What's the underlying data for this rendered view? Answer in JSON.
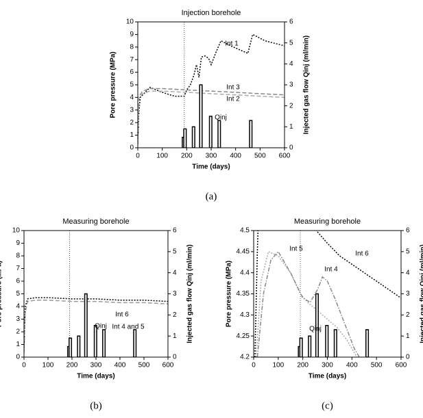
{
  "chart_data": [
    {
      "type": "line",
      "title": "Injection borehole",
      "caption": "(a)",
      "x_label": "Time   (days)",
      "y_label": "Pore pressure   (MPa)",
      "y2_label": "Injected gas flow Qinj (ml/min)",
      "xlim": [
        0,
        600
      ],
      "xticks": [
        0,
        100,
        200,
        300,
        400,
        500,
        600
      ],
      "ylim": [
        0,
        10
      ],
      "yticks": [
        0,
        1,
        2,
        3,
        4,
        5,
        6,
        7,
        8,
        9,
        10
      ],
      "y2lim": [
        0,
        6
      ],
      "y2ticks": [
        0,
        1,
        2,
        3,
        4,
        5,
        6
      ],
      "vline": 190,
      "series": [
        {
          "name": "Int 1",
          "color": "#000000",
          "dash": "dotted",
          "x": [
            0,
            5,
            10,
            30,
            50,
            100,
            150,
            190,
            200,
            215,
            230,
            240,
            250,
            260,
            275,
            290,
            300,
            320,
            340,
            380,
            450,
            470,
            520,
            600
          ],
          "values": [
            0.5,
            3.0,
            4.0,
            4.4,
            4.8,
            4.4,
            4.1,
            4.1,
            4.6,
            5.0,
            5.8,
            6.6,
            5.6,
            7.2,
            7.3,
            7.1,
            6.6,
            7.6,
            8.5,
            8.1,
            7.5,
            9.0,
            8.5,
            8.1
          ]
        },
        {
          "name": "Int 3",
          "color": "#888888",
          "dash": "dashed",
          "x": [
            0,
            5,
            20,
            50,
            100,
            200,
            300,
            400,
            500,
            600
          ],
          "values": [
            0.3,
            4.1,
            4.5,
            4.7,
            4.7,
            4.6,
            4.5,
            4.4,
            4.3,
            4.2
          ]
        },
        {
          "name": "Int 2",
          "color": "#aaaaaa",
          "dash": "dashed",
          "x": [
            0,
            5,
            20,
            50,
            100,
            200,
            300,
            400,
            500,
            600
          ],
          "values": [
            0.3,
            4.0,
            4.3,
            4.5,
            4.5,
            4.4,
            4.3,
            4.2,
            4.1,
            4.0
          ]
        },
        {
          "name": "Qinj",
          "type": "bar",
          "axis": "y2",
          "color": "#000000",
          "x": [
            187,
            193,
            228,
            258,
            298,
            333,
            462
          ],
          "values": [
            0.5,
            0.9,
            1.0,
            3.0,
            1.5,
            1.3,
            1.3
          ]
        }
      ]
    },
    {
      "type": "line",
      "title": "Measuring borehole",
      "caption": "(b)",
      "x_label": "Time   (days)",
      "y_label": "Pore pressure   (MPa)",
      "y2_label": "Injected gas flow Qinj (ml/min)",
      "xlim": [
        0,
        600
      ],
      "xticks": [
        0,
        100,
        200,
        300,
        400,
        500,
        600
      ],
      "ylim": [
        0,
        10
      ],
      "yticks": [
        0,
        1,
        2,
        3,
        4,
        5,
        6,
        7,
        8,
        9,
        10
      ],
      "y2lim": [
        0,
        6
      ],
      "y2ticks": [
        0,
        1,
        2,
        3,
        4,
        5,
        6
      ],
      "vline": 190,
      "series": [
        {
          "name": "Int 6",
          "color": "#000000",
          "dash": "dotted",
          "x": [
            0,
            5,
            15,
            50,
            100,
            200,
            300,
            400,
            500,
            600
          ],
          "values": [
            0.5,
            4.0,
            4.6,
            4.7,
            4.7,
            4.6,
            4.6,
            4.5,
            4.5,
            4.4
          ]
        },
        {
          "name": "Int 4 and 5",
          "color": "#999999",
          "dash": "dashed",
          "x": [
            0,
            5,
            15,
            50,
            100,
            200,
            300,
            400,
            500,
            600
          ],
          "values": [
            0.3,
            3.5,
            4.4,
            4.5,
            4.5,
            4.4,
            4.4,
            4.3,
            4.3,
            4.2
          ]
        },
        {
          "name": "Qinj",
          "type": "bar",
          "axis": "y2",
          "color": "#000000",
          "x": [
            187,
            193,
            228,
            258,
            298,
            333,
            462
          ],
          "values": [
            0.5,
            0.9,
            1.0,
            3.0,
            1.5,
            1.3,
            1.3
          ]
        }
      ]
    },
    {
      "type": "line",
      "title": "Measuring borehole",
      "caption": "(c)",
      "x_label": "Time   (days)",
      "y_label": "Pore pressure   (MPa)",
      "y2_label": "Injected gas flow Qinj (ml/min)",
      "xlim": [
        0,
        600
      ],
      "xticks": [
        0,
        100,
        200,
        300,
        400,
        500,
        600
      ],
      "ylim": [
        4.2,
        4.5
      ],
      "yticks": [
        4.2,
        4.25,
        4.3,
        4.35,
        4.4,
        4.45,
        4.5
      ],
      "y2lim": [
        0,
        6
      ],
      "y2ticks": [
        0,
        1,
        2,
        3,
        4,
        5,
        6
      ],
      "vline": 190,
      "series": [
        {
          "name": "Int 5",
          "color": "#aaaaaa",
          "dash": "dotted",
          "x": [
            10,
            30,
            60,
            100,
            150,
            190,
            220,
            260,
            300,
            340,
            380,
            420
          ],
          "values": [
            4.2,
            4.38,
            4.45,
            4.44,
            4.4,
            4.35,
            4.33,
            4.31,
            4.29,
            4.27,
            4.24,
            4.2
          ]
        },
        {
          "name": "Int 4",
          "color": "#888888",
          "dash": "dash-dot",
          "x": [
            15,
            40,
            70,
            100,
            150,
            200,
            230,
            260,
            280,
            300,
            330,
            370,
            410,
            430
          ],
          "values": [
            4.2,
            4.35,
            4.43,
            4.45,
            4.4,
            4.34,
            4.33,
            4.36,
            4.39,
            4.38,
            4.34,
            4.28,
            4.22,
            4.2
          ]
        },
        {
          "name": "Int 6",
          "color": "#000000",
          "dash": "dotted",
          "x": [
            5,
            15,
            20,
            255,
            300,
            350,
            400,
            450,
            500,
            550,
            600
          ],
          "values": [
            4.2,
            4.45,
            4.55,
            4.5,
            4.47,
            4.44,
            4.42,
            4.4,
            4.38,
            4.36,
            4.34
          ]
        },
        {
          "name": "Qinj",
          "type": "bar",
          "axis": "y2",
          "color": "#000000",
          "x": [
            187,
            193,
            228,
            258,
            298,
            333,
            462
          ],
          "values": [
            0.5,
            0.9,
            1.0,
            3.0,
            1.5,
            1.3,
            1.3
          ]
        }
      ]
    }
  ]
}
